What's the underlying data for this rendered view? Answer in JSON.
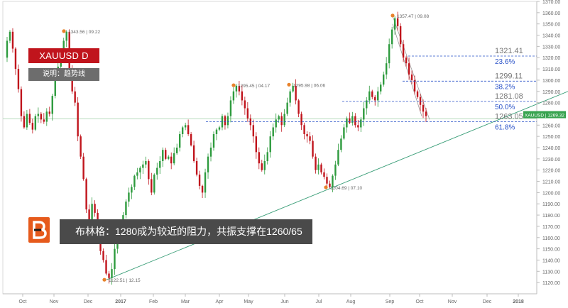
{
  "header": {
    "symbol_badge": "XAUUSD  D",
    "description_badge": "说明：趋势线"
  },
  "banner": {
    "text": "布林格：1280成为较近的阻力，共振支撑在1260/65"
  },
  "price_tag": "XAUUSD | 1269.32",
  "colors": {
    "up": "#2e9b3e",
    "down": "#c0141c",
    "fib_line": "#2a52c8",
    "trendline": "#3a9e78",
    "badge_red": "#c0141c",
    "badge_gray": "#6d6d6d",
    "logo": "#e65a1c",
    "pivot": "#e8822a"
  },
  "chart_data": {
    "type": "candlestick",
    "ylim": [
      1110,
      1370
    ],
    "yticks": [
      1120,
      1130,
      1140,
      1150,
      1160,
      1170,
      1180,
      1190,
      1200,
      1210,
      1220,
      1230,
      1240,
      1250,
      1260,
      1270,
      1280,
      1290,
      1300,
      1310,
      1320,
      1330,
      1340,
      1350,
      1360,
      1370
    ],
    "xticks": [
      "Oct",
      "Nov",
      "Dec",
      "2017",
      "Feb",
      "Mar",
      "Apr",
      "May",
      "Jun",
      "Jul",
      "Aug",
      "Sep",
      "Oct",
      "Nov",
      "Dec",
      "2018"
    ],
    "series": [
      {
        "name": "XAUUSD",
        "price_path": [
          [
            0,
            1320
          ],
          [
            4,
            1335
          ],
          [
            8,
            1343
          ],
          [
            12,
            1328
          ],
          [
            16,
            1310
          ],
          [
            20,
            1292
          ],
          [
            24,
            1268
          ],
          [
            28,
            1258
          ],
          [
            32,
            1270
          ],
          [
            36,
            1262
          ],
          [
            40,
            1256
          ],
          [
            44,
            1268
          ],
          [
            48,
            1270
          ],
          [
            52,
            1265
          ],
          [
            56,
            1263
          ],
          [
            60,
            1272
          ],
          [
            64,
            1270
          ],
          [
            68,
            1286
          ],
          [
            72,
            1305
          ],
          [
            76,
            1312
          ],
          [
            80,
            1325
          ],
          [
            84,
            1335
          ],
          [
            88,
            1343
          ],
          [
            92,
            1310
          ],
          [
            96,
            1290
          ],
          [
            100,
            1280
          ],
          [
            104,
            1250
          ],
          [
            108,
            1232
          ],
          [
            112,
            1212
          ],
          [
            116,
            1185
          ],
          [
            120,
            1175
          ],
          [
            124,
            1190
          ],
          [
            128,
            1182
          ],
          [
            132,
            1165
          ],
          [
            136,
            1148
          ],
          [
            140,
            1140
          ],
          [
            144,
            1128
          ],
          [
            148,
            1124
          ],
          [
            152,
            1132
          ],
          [
            156,
            1150
          ],
          [
            160,
            1162
          ],
          [
            164,
            1170
          ],
          [
            168,
            1180
          ],
          [
            172,
            1192
          ],
          [
            176,
            1200
          ],
          [
            180,
            1205
          ],
          [
            184,
            1215
          ],
          [
            188,
            1218
          ],
          [
            192,
            1222
          ],
          [
            196,
            1225
          ],
          [
            200,
            1228
          ],
          [
            204,
            1212
          ],
          [
            208,
            1200
          ],
          [
            212,
            1216
          ],
          [
            216,
            1222
          ],
          [
            220,
            1228
          ],
          [
            224,
            1238
          ],
          [
            228,
            1230
          ],
          [
            232,
            1232
          ],
          [
            236,
            1226
          ],
          [
            240,
            1235
          ],
          [
            244,
            1240
          ],
          [
            248,
            1252
          ],
          [
            252,
            1258
          ],
          [
            256,
            1260
          ],
          [
            260,
            1252
          ],
          [
            264,
            1242
          ],
          [
            268,
            1228
          ],
          [
            272,
            1216
          ],
          [
            276,
            1206
          ],
          [
            280,
            1200
          ],
          [
            284,
            1218
          ],
          [
            288,
            1232
          ],
          [
            292,
            1240
          ],
          [
            296,
            1252
          ],
          [
            300,
            1256
          ],
          [
            304,
            1258
          ],
          [
            308,
            1268
          ],
          [
            312,
            1260
          ],
          [
            316,
            1268
          ],
          [
            320,
            1282
          ],
          [
            324,
            1290
          ],
          [
            328,
            1295
          ],
          [
            332,
            1290
          ],
          [
            336,
            1282
          ],
          [
            340,
            1275
          ],
          [
            344,
            1266
          ],
          [
            348,
            1260
          ],
          [
            352,
            1250
          ],
          [
            356,
            1236
          ],
          [
            360,
            1226
          ],
          [
            364,
            1220
          ],
          [
            368,
            1228
          ],
          [
            372,
            1236
          ],
          [
            376,
            1250
          ],
          [
            380,
            1258
          ],
          [
            384,
            1265
          ],
          [
            388,
            1268
          ],
          [
            392,
            1260
          ],
          [
            396,
            1270
          ],
          [
            400,
            1280
          ],
          [
            404,
            1290
          ],
          [
            408,
            1295
          ],
          [
            412,
            1282
          ],
          [
            416,
            1270
          ],
          [
            420,
            1260
          ],
          [
            424,
            1252
          ],
          [
            428,
            1250
          ],
          [
            432,
            1246
          ],
          [
            436,
            1232
          ],
          [
            440,
            1220
          ],
          [
            444,
            1225
          ],
          [
            448,
            1218
          ],
          [
            452,
            1214
          ],
          [
            456,
            1208
          ],
          [
            460,
            1205
          ],
          [
            464,
            1215
          ],
          [
            468,
            1225
          ],
          [
            472,
            1238
          ],
          [
            476,
            1248
          ],
          [
            480,
            1258
          ],
          [
            484,
            1266
          ],
          [
            488,
            1262
          ],
          [
            492,
            1268
          ],
          [
            496,
            1260
          ],
          [
            500,
            1258
          ],
          [
            504,
            1265
          ],
          [
            508,
            1275
          ],
          [
            512,
            1282
          ],
          [
            516,
            1290
          ],
          [
            520,
            1285
          ],
          [
            524,
            1282
          ],
          [
            528,
            1290
          ],
          [
            532,
            1296
          ],
          [
            536,
            1305
          ],
          [
            540,
            1315
          ],
          [
            544,
            1332
          ],
          [
            548,
            1345
          ],
          [
            552,
            1355
          ],
          [
            556,
            1348
          ],
          [
            560,
            1332
          ],
          [
            564,
            1320
          ],
          [
            568,
            1315
          ],
          [
            572,
            1305
          ],
          [
            576,
            1300
          ],
          [
            580,
            1290
          ],
          [
            584,
            1285
          ],
          [
            588,
            1278
          ],
          [
            592,
            1272
          ],
          [
            596,
            1268
          ]
        ]
      }
    ],
    "annotations": [
      {
        "label": "1343.56 | 09.22",
        "price": 1343.56
      },
      {
        "label": "1122.51 | 12.15",
        "price": 1122.51
      },
      {
        "label": "1295.45 | 04.17",
        "price": 1295.45
      },
      {
        "label": "1295.98 | 06.06",
        "price": 1295.98
      },
      {
        "label": "1204.69 | 07.10",
        "price": 1204.69
      },
      {
        "label": "1357.47 | 09.08",
        "price": 1357.47
      }
    ],
    "fib_levels": [
      {
        "price": 1321.41,
        "ratio": "23.6%",
        "price_label": "1321.41"
      },
      {
        "price": 1299.11,
        "ratio": "38.2%",
        "price_label": "1299.11"
      },
      {
        "price": 1281.08,
        "ratio": "50.0%",
        "price_label": "1281.08"
      },
      {
        "price": 1263.05,
        "ratio": "61.8%",
        "price_label": "1263.05"
      }
    ],
    "current_price": 1269.32,
    "grid": false,
    "legend": "top-left"
  }
}
